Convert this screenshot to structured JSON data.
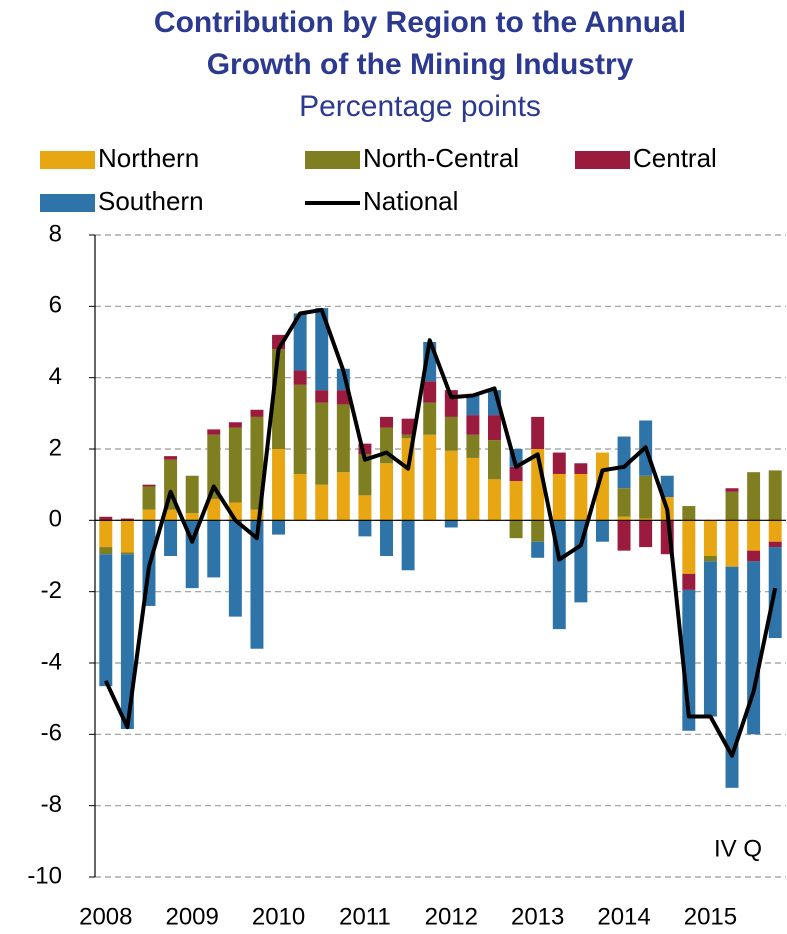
{
  "chart_data": {
    "type": "stacked-bar-line",
    "title": [
      "Contribution by Region to the Annual",
      "Growth of the Mining Industry"
    ],
    "subtitle": "Percentage points",
    "annotation": "IV Q",
    "categories": [
      "2008",
      null,
      null,
      null,
      "2009",
      null,
      null,
      null,
      "2010",
      null,
      null,
      null,
      "2011",
      null,
      null,
      null,
      "2012",
      null,
      null,
      null,
      "2013",
      null,
      null,
      null,
      "2014",
      null,
      null,
      null,
      "2015",
      null,
      null,
      null
    ],
    "series": [
      {
        "name": "Northern",
        "color": "#e8a712",
        "kind": "bar",
        "values": [
          -0.75,
          -0.9,
          0.3,
          0.3,
          0.2,
          0.6,
          0.5,
          0.3,
          2.0,
          1.3,
          1.0,
          1.35,
          0.7,
          1.6,
          2.3,
          2.4,
          1.95,
          1.75,
          1.15,
          1.1,
          2.0,
          1.3,
          1.3,
          1.9,
          0.1,
          0.05,
          0.65,
          -1.5,
          -1.0,
          -1.3,
          -0.85,
          -0.6
        ]
      },
      {
        "name": "North-Central",
        "color": "#7f7f22",
        "kind": "bar",
        "values": [
          -0.2,
          -0.05,
          0.65,
          1.4,
          1.05,
          1.8,
          2.1,
          2.6,
          2.8,
          2.5,
          2.3,
          1.9,
          1.15,
          1.0,
          0.1,
          0.9,
          0.95,
          0.65,
          1.1,
          -0.5,
          -0.6,
          0,
          0,
          0,
          0.8,
          1.2,
          0,
          0.4,
          -0.15,
          0.8,
          1.35,
          1.4
        ]
      },
      {
        "name": "Central",
        "color": "#9b1b3e",
        "kind": "bar",
        "values": [
          0.1,
          0.05,
          0.05,
          0.1,
          0,
          0.15,
          0.15,
          0.2,
          0.4,
          0.4,
          0.35,
          0.4,
          0.3,
          0.3,
          0.45,
          0.6,
          0.75,
          0.55,
          0.7,
          0.4,
          0.9,
          0.6,
          0.3,
          0,
          -0.85,
          -0.75,
          -0.95,
          -0.45,
          0,
          0.1,
          -0.3,
          -0.15
        ]
      },
      {
        "name": "Southern",
        "color": "#2f74a8",
        "kind": "bar",
        "values": [
          -3.7,
          -4.9,
          -2.4,
          -1.0,
          -1.9,
          -1.6,
          -2.7,
          -3.6,
          -0.4,
          1.6,
          2.3,
          0.6,
          -0.45,
          -1.0,
          -1.4,
          1.1,
          -0.2,
          0.55,
          0.7,
          0.5,
          -0.45,
          -3.05,
          -2.3,
          -0.6,
          1.45,
          1.55,
          0.6,
          -3.95,
          -4.35,
          -6.2,
          -4.85,
          -2.55
        ]
      },
      {
        "name": "National",
        "color": "#000000",
        "kind": "line",
        "values": [
          -4.5,
          -5.8,
          -1.3,
          0.8,
          -0.6,
          0.95,
          0.0,
          -0.5,
          4.8,
          5.8,
          5.9,
          4.2,
          1.7,
          1.9,
          1.45,
          5.05,
          3.45,
          3.5,
          3.7,
          1.5,
          1.85,
          -1.1,
          -0.7,
          1.4,
          1.5,
          2.05,
          0.3,
          -5.5,
          -5.5,
          -6.6,
          -4.8,
          -1.9
        ]
      }
    ],
    "ylim": [
      -10,
      8
    ],
    "yticks": [
      -10,
      -8,
      -6,
      -4,
      -2,
      0,
      2,
      4,
      6,
      8
    ],
    "grid": true
  }
}
